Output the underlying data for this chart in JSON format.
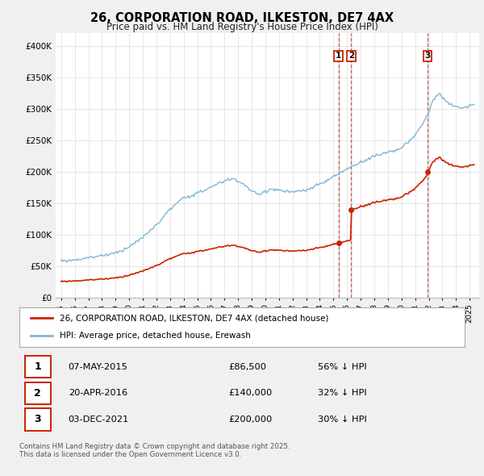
{
  "title": "26, CORPORATION ROAD, ILKESTON, DE7 4AX",
  "subtitle": "Price paid vs. HM Land Registry's House Price Index (HPI)",
  "ylim": [
    0,
    420000
  ],
  "yticks": [
    0,
    50000,
    100000,
    150000,
    200000,
    250000,
    300000,
    350000,
    400000
  ],
  "ytick_labels": [
    "£0",
    "£50K",
    "£100K",
    "£150K",
    "£200K",
    "£250K",
    "£300K",
    "£350K",
    "£400K"
  ],
  "hpi_color": "#7db8d8",
  "price_color": "#cc2200",
  "dashed_line_color": "#cc2200",
  "shade_color": "#ddeeff",
  "background_color": "#f0f0f0",
  "plot_bg_color": "#ffffff",
  "transaction_prices": [
    86500,
    140000,
    200000
  ],
  "transaction_labels": [
    "1",
    "2",
    "3"
  ],
  "transaction_info": [
    {
      "label": "1",
      "date": "07-MAY-2015",
      "price": "£86,500",
      "pct": "56% ↓ HPI"
    },
    {
      "label": "2",
      "date": "20-APR-2016",
      "price": "£140,000",
      "pct": "32% ↓ HPI"
    },
    {
      "label": "3",
      "date": "03-DEC-2021",
      "price": "£200,000",
      "pct": "30% ↓ HPI"
    }
  ],
  "legend_line1": "26, CORPORATION ROAD, ILKESTON, DE7 4AX (detached house)",
  "legend_line2": "HPI: Average price, detached house, Erewash",
  "footer": "Contains HM Land Registry data © Crown copyright and database right 2025.\nThis data is licensed under the Open Government Licence v3.0.",
  "hpi_anchors_x": [
    1995.0,
    1996.0,
    1997.0,
    1998.0,
    1999.0,
    2000.0,
    2001.0,
    2002.0,
    2003.0,
    2004.0,
    2005.0,
    2006.0,
    2007.0,
    2007.75,
    2008.5,
    2009.0,
    2009.5,
    2010.0,
    2010.5,
    2011.0,
    2012.0,
    2013.0,
    2014.0,
    2015.0,
    2015.4,
    2016.0,
    2016.3,
    2017.0,
    2018.0,
    2019.0,
    2020.0,
    2020.5,
    2021.0,
    2021.5,
    2021.9,
    2022.3,
    2022.8,
    2023.0,
    2023.5,
    2024.0,
    2024.5,
    2025.3
  ],
  "hpi_anchors_y": [
    58000,
    60000,
    63000,
    67000,
    71000,
    80000,
    95000,
    115000,
    140000,
    158000,
    165000,
    175000,
    185000,
    188000,
    178000,
    168000,
    163000,
    168000,
    172000,
    170000,
    167000,
    170000,
    180000,
    192000,
    197000,
    205000,
    208000,
    215000,
    225000,
    232000,
    238000,
    248000,
    258000,
    275000,
    290000,
    315000,
    325000,
    318000,
    308000,
    305000,
    302000,
    308000
  ],
  "t_years": [
    2015.37,
    2016.3,
    2021.92
  ]
}
